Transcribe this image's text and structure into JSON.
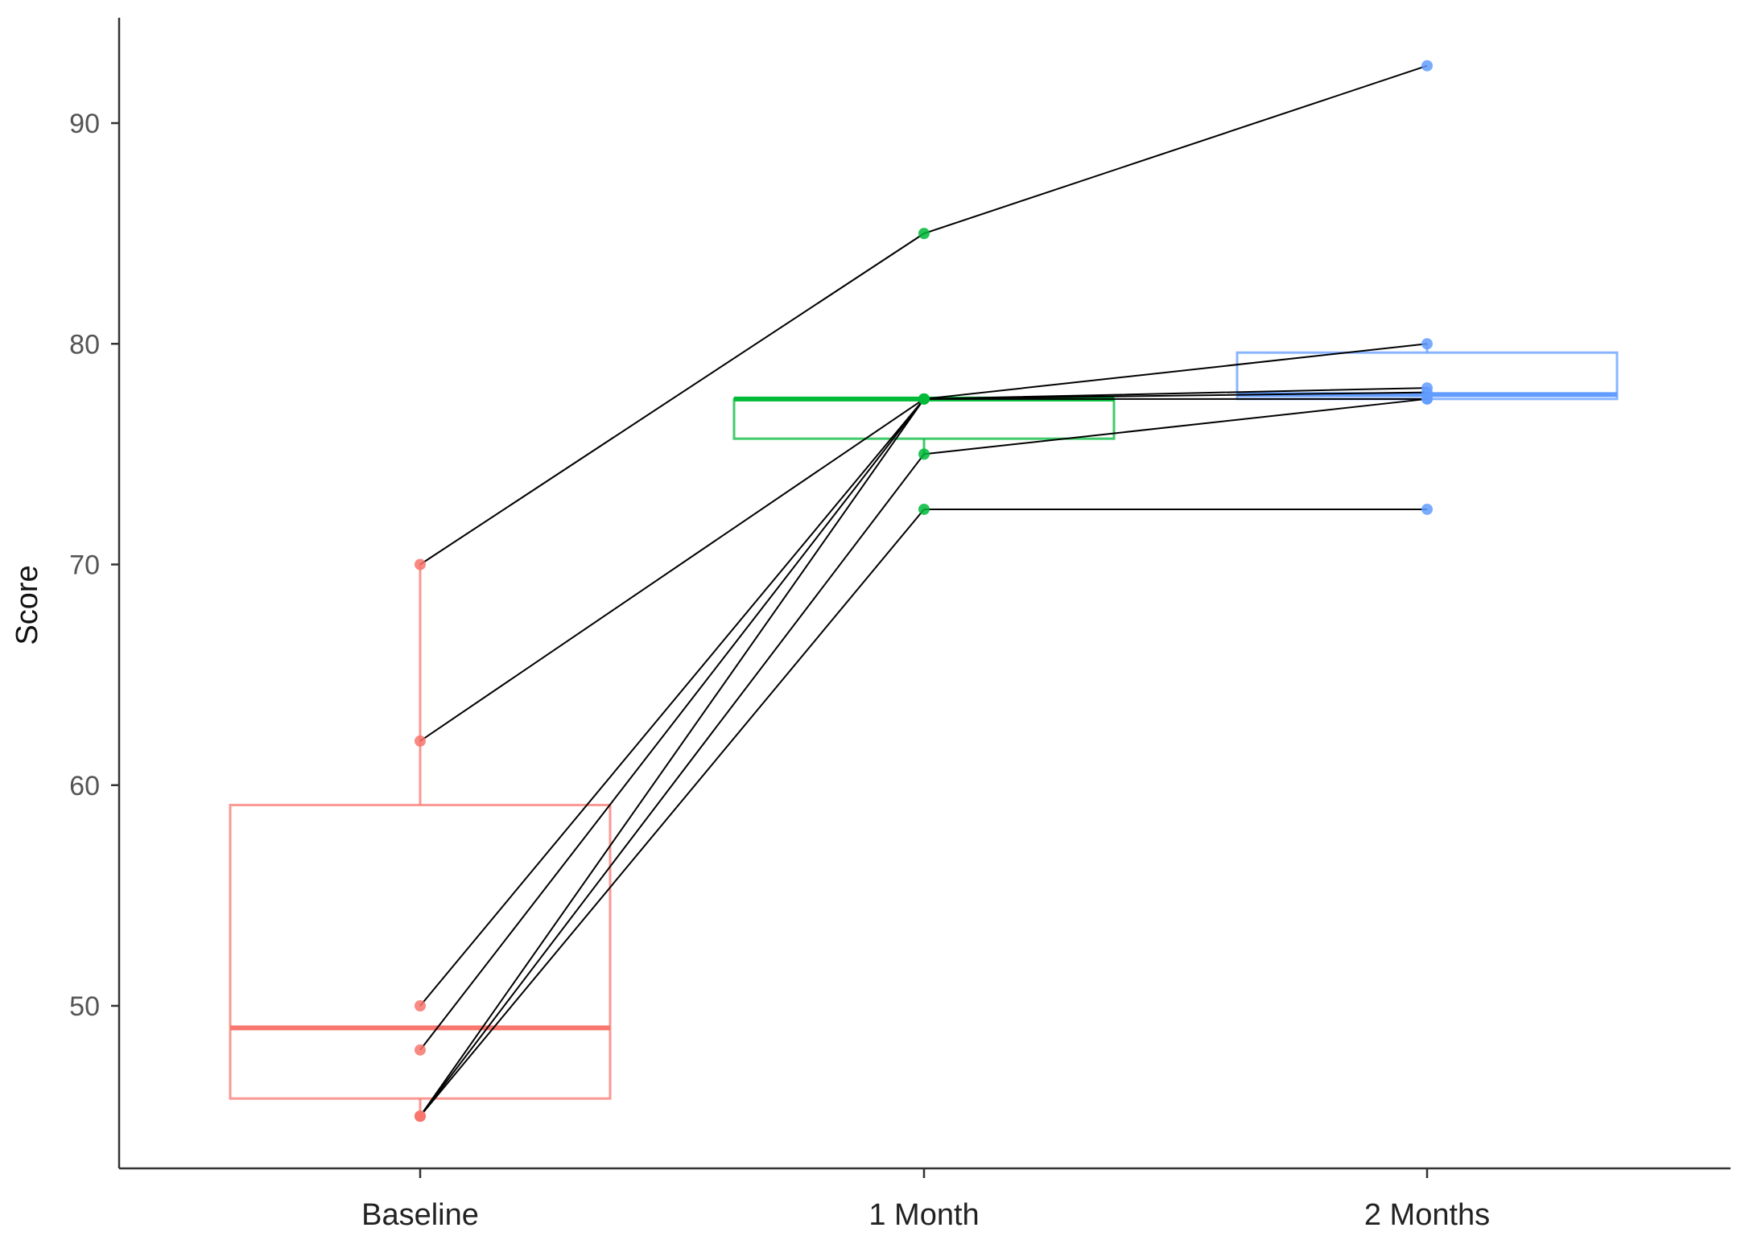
{
  "chart_data": {
    "type": "boxplot-paired",
    "title": "",
    "xlabel": "",
    "ylabel": "Score",
    "categories": [
      "Baseline",
      "1 Month",
      "2 Months"
    ],
    "ylim": [
      42.5,
      95
    ],
    "yticks": [
      50,
      60,
      70,
      80,
      90
    ],
    "grid": false,
    "legend": "none",
    "colors": [
      "#F8766D",
      "#00BA38",
      "#619CFF"
    ],
    "line_color": "#000000",
    "boxes": [
      {
        "category": "Baseline",
        "q1": 45.8,
        "median": 49,
        "q3": 59.1,
        "whisker_low": 45,
        "whisker_high": 70
      },
      {
        "category": "1 Month",
        "q1": 75.7,
        "median": 77.5,
        "q3": 77.5,
        "whisker_low": 75,
        "whisker_high": 77.5
      },
      {
        "category": "2 Months",
        "q1": 77.5,
        "median": 77.7,
        "q3": 79.6,
        "whisker_low": 77.5,
        "whisker_high": 80
      }
    ],
    "subjects": [
      {
        "values": [
          70,
          85,
          92.6
        ]
      },
      {
        "values": [
          62,
          77.5,
          78
        ]
      },
      {
        "values": [
          50,
          77.5,
          77.5
        ]
      },
      {
        "values": [
          48,
          77.5,
          80
        ]
      },
      {
        "values": [
          45,
          75,
          77.5
        ]
      },
      {
        "values": [
          45,
          72.5,
          72.5
        ]
      },
      {
        "values": [
          45,
          77.5,
          77.8
        ]
      }
    ]
  }
}
